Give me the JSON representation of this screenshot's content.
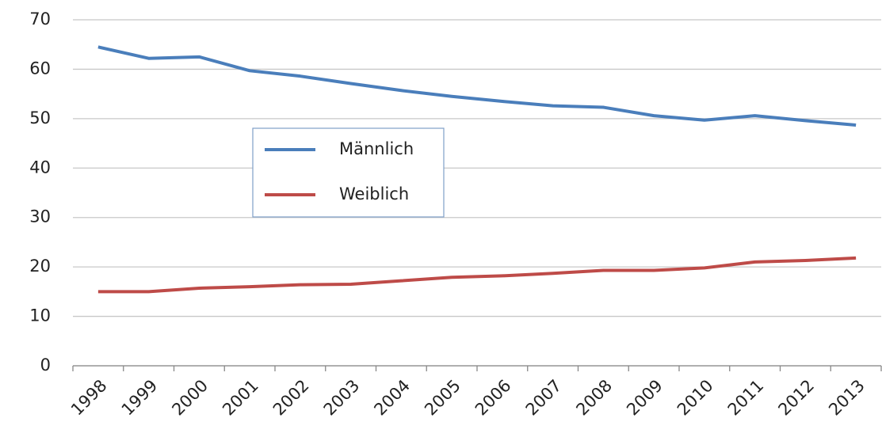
{
  "chart_data": {
    "type": "line",
    "categories": [
      "1998",
      "1999",
      "2000",
      "2001",
      "2002",
      "2003",
      "2004",
      "2005",
      "2006",
      "2007",
      "2008",
      "2009",
      "2010",
      "2011",
      "2012",
      "2013"
    ],
    "series": [
      {
        "name": "Männlich",
        "color": "#4a7ebb",
        "values": [
          64.5,
          62.2,
          62.5,
          59.7,
          58.6,
          57.1,
          55.7,
          54.5,
          53.5,
          52.6,
          52.3,
          50.6,
          49.7,
          50.6,
          49.6,
          48.7
        ]
      },
      {
        "name": "Weiblich",
        "color": "#be4b48",
        "values": [
          15.0,
          15.0,
          15.7,
          16.0,
          16.4,
          16.5,
          17.2,
          17.9,
          18.2,
          18.7,
          19.3,
          19.3,
          19.8,
          21.0,
          21.3,
          21.8
        ]
      }
    ],
    "ylim": [
      0,
      70
    ],
    "yticks": [
      0,
      10,
      20,
      30,
      40,
      50,
      60,
      70
    ],
    "grid": true
  }
}
